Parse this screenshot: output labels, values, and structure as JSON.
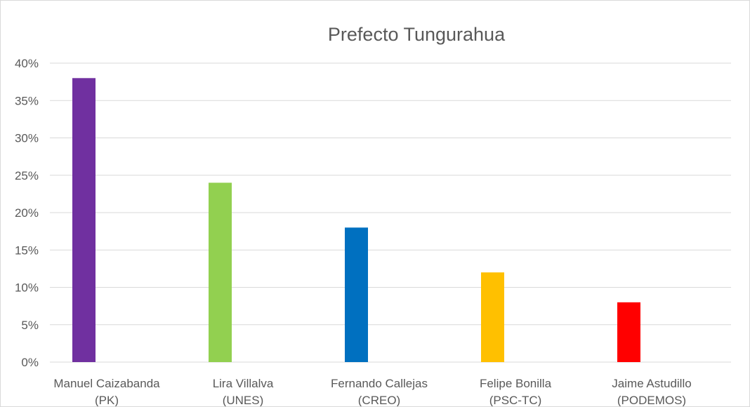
{
  "chart_data": {
    "type": "bar",
    "title": "Prefecto Tungurahua",
    "xlabel": "",
    "ylabel": "",
    "categories": [
      [
        "Manuel Caizabanda",
        "(PK)"
      ],
      [
        "Lira Villalva",
        "(UNES)"
      ],
      [
        "Fernando Callejas",
        "(CREO)"
      ],
      [
        "Felipe Bonilla",
        "(PSC-TC)"
      ],
      [
        "Jaime Astudillo",
        "(PODEMOS)"
      ]
    ],
    "values": [
      38,
      24,
      18,
      12,
      8
    ],
    "colors": [
      "#7030a0",
      "#92d050",
      "#0070c0",
      "#ffc000",
      "#ff0000"
    ],
    "ylim": [
      0,
      40
    ],
    "yticks": [
      "0%",
      "5%",
      "10%",
      "15%",
      "20%",
      "25%",
      "30%",
      "35%",
      "40%"
    ],
    "grid": true,
    "gridColor": "#d9d9d9",
    "legend": "none"
  }
}
